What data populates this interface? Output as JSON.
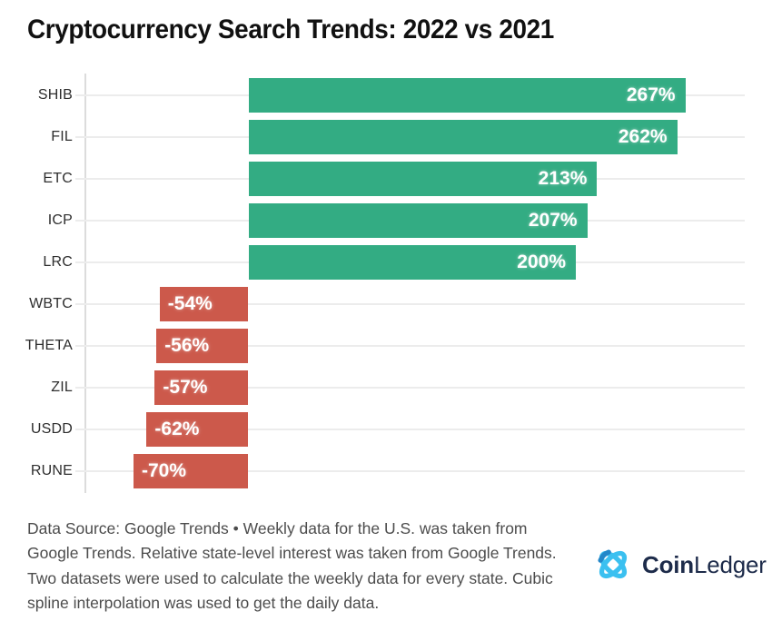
{
  "title": "Cryptocurrency Search Trends: 2022 vs 2021",
  "chart_data": {
    "type": "bar",
    "orientation": "horizontal",
    "title": "Cryptocurrency Search Trends: 2022 vs 2021",
    "unit": "%",
    "categories": [
      "SHIB",
      "FIL",
      "ETC",
      "ICP",
      "LRC",
      "WBTC",
      "THETA",
      "ZIL",
      "USDD",
      "RUNE"
    ],
    "values": [
      267,
      262,
      213,
      207,
      200,
      -54,
      -56,
      -57,
      -62,
      -70
    ],
    "value_labels": [
      "267%",
      "262%",
      "213%",
      "207%",
      "200%",
      "-54%",
      "-56%",
      "-57%",
      "-62%",
      "-70%"
    ],
    "positive_color": "#33AC83",
    "negative_color": "#CC594B",
    "xlim": [
      -100,
      305
    ],
    "grid": "row-lines",
    "legend": "none"
  },
  "footer": {
    "lines": [
      "Data Source: Google Trends • Weekly data for the U.S. was taken from",
      "Google Trends. Relative state-level interest was taken from Google Trends.",
      "Two datasets were used to calculate the weekly data for every state. Cubic",
      "spline interpolation was used to get the daily data."
    ]
  },
  "logo": {
    "icon": "coinledger-knot-icon",
    "icon_color": "#3BC0F0",
    "icon_accent": "#2387C9",
    "brand_bold": "Coin",
    "brand_light": "Ledger",
    "text_color": "#1d2b4a"
  }
}
